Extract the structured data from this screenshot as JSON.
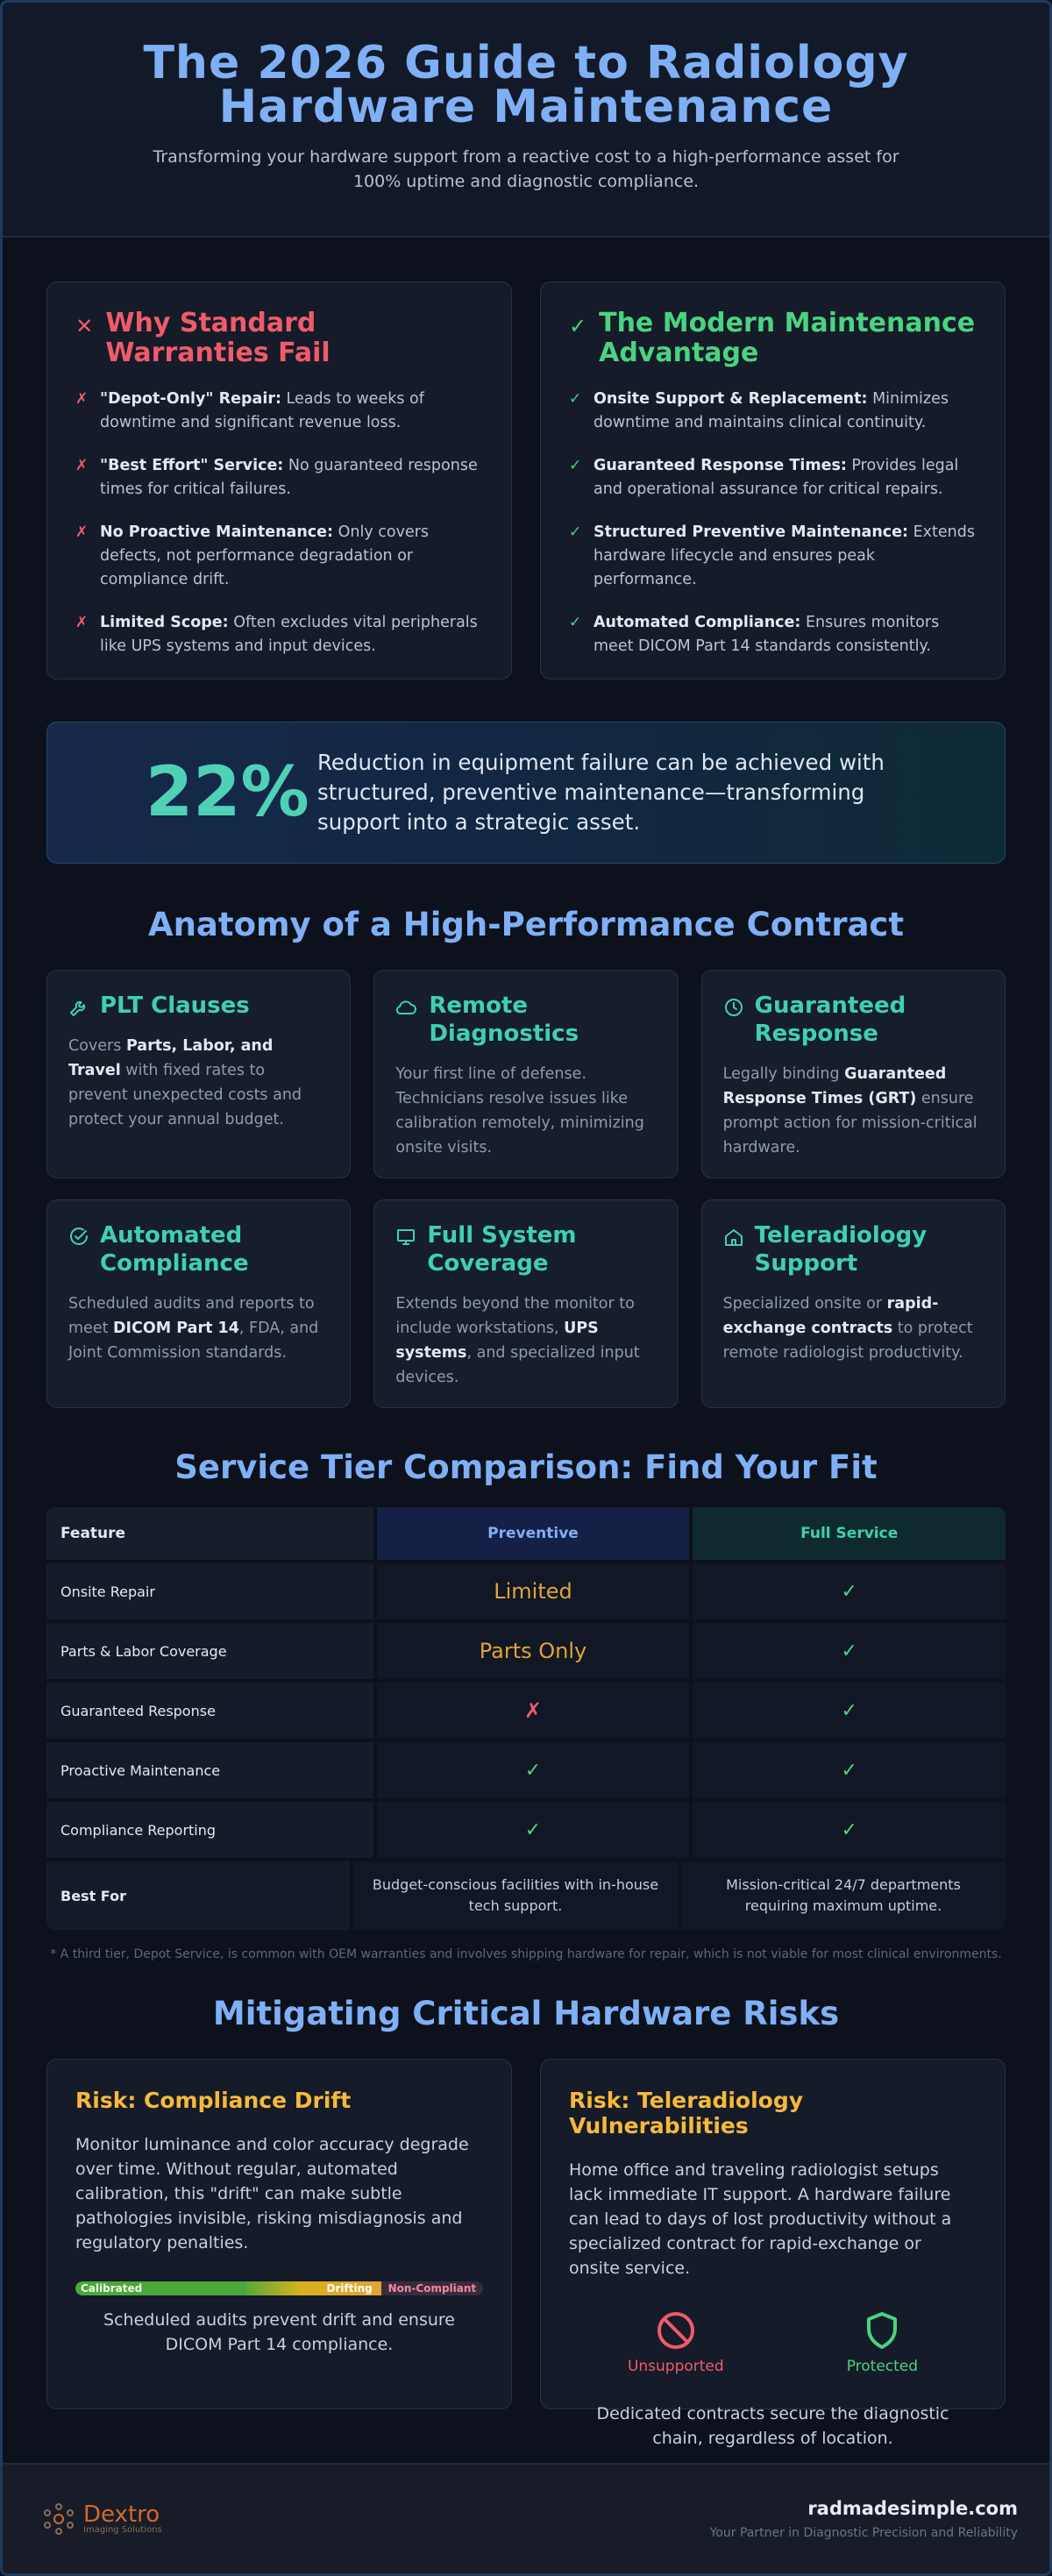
{
  "header": {
    "title": "The 2026 Guide to Radiology Hardware Maintenance",
    "subtitle": "Transforming your hardware support from a reactive cost to a high-performance asset for 100% uptime and diagnostic compliance."
  },
  "compare": {
    "bad": {
      "title": "Why Standard Warranties Fail",
      "icon": "x-icon",
      "items": [
        {
          "bold": "\"Depot-Only\" Repair:",
          "text": " Leads to weeks of downtime and significant revenue loss."
        },
        {
          "bold": "\"Best Effort\" Service:",
          "text": " No guaranteed response times for critical failures."
        },
        {
          "bold": "No Proactive Maintenance:",
          "text": " Only covers defects, not performance degradation or compliance drift."
        },
        {
          "bold": "Limited Scope:",
          "text": " Often excludes vital peripherals like UPS systems and input devices."
        }
      ]
    },
    "good": {
      "title": "The Modern Maintenance Advantage",
      "icon": "check-icon",
      "items": [
        {
          "bold": "Onsite Support & Replacement:",
          "text": " Minimizes downtime and maintains clinical continuity."
        },
        {
          "bold": "Guaranteed Response Times:",
          "text": " Provides legal and operational assurance for critical repairs."
        },
        {
          "bold": "Structured Preventive Maintenance:",
          "text": " Extends hardware lifecycle and ensures peak performance."
        },
        {
          "bold": "Automated Compliance:",
          "text": " Ensures monitors meet DICOM Part 14 standards consistently."
        }
      ]
    }
  },
  "stat": {
    "value": "22%",
    "text": "Reduction in equipment failure can be achieved with structured, preventive maintenance—transforming support into a strategic asset."
  },
  "anatomy": {
    "title": "Anatomy of a High-Performance Contract",
    "cards": [
      {
        "title": "PLT Clauses",
        "icon": "wrench-icon",
        "parts": [
          "Covers ",
          "Parts, Labor, and Travel",
          " with fixed rates to prevent unexpected costs and protect your annual budget."
        ]
      },
      {
        "title": "Remote Diagnostics",
        "icon": "cloud-icon",
        "parts": [
          "Your first line of defense. Technicians resolve issues like calibration remotely, minimizing onsite visits.",
          "",
          ""
        ]
      },
      {
        "title": "Guaranteed Response",
        "icon": "clock-icon",
        "parts": [
          "Legally binding ",
          "Guaranteed Response Times (GRT)",
          " ensure prompt action for mission-critical hardware."
        ]
      },
      {
        "title": "Automated Compliance",
        "icon": "check-circle-icon",
        "parts": [
          "Scheduled audits and reports to meet ",
          "DICOM Part 14",
          ", FDA, and Joint Commission standards."
        ]
      },
      {
        "title": "Full System Coverage",
        "icon": "monitor-icon",
        "parts": [
          "Extends beyond the monitor to include workstations, ",
          "UPS systems",
          ", and specialized input devices."
        ]
      },
      {
        "title": "Teleradiology Support",
        "icon": "home-icon",
        "parts": [
          "Specialized onsite or ",
          "rapid-exchange contracts",
          " to protect remote radiologist productivity."
        ]
      }
    ]
  },
  "tiers": {
    "title": "Service Tier Comparison: Find Your Fit",
    "headers": [
      "Feature",
      "Preventive",
      "Full Service"
    ],
    "rows": [
      {
        "feature": "Onsite Repair",
        "preventive": "Limited",
        "full": "✓"
      },
      {
        "feature": "Parts & Labor Coverage",
        "preventive": "Parts Only",
        "full": "✓"
      },
      {
        "feature": "Guaranteed Response",
        "preventive": "✗",
        "full": "✓"
      },
      {
        "feature": "Proactive Maintenance",
        "preventive": "✓",
        "full": "✓"
      },
      {
        "feature": "Compliance Reporting",
        "preventive": "✓",
        "full": "✓"
      }
    ],
    "best_for": {
      "label": "Best For",
      "preventive": "Budget-conscious facilities with in-house tech support.",
      "full": "Mission-critical 24/7 departments requiring maximum uptime."
    },
    "footnote": "* A third tier, Depot Service, is common with OEM warranties and involves shipping hardware for repair, which is not viable for most clinical environments."
  },
  "risks": {
    "title": "Mitigating Critical Hardware Risks",
    "drift": {
      "title": "Risk: Compliance Drift",
      "text": "Monitor luminance and color accuracy degrade over time. Without regular, automated calibration, this \"drift\" can make subtle pathologies invisible, risking misdiagnosis and regulatory penalties.",
      "bar_labels": [
        "Calibrated",
        "Drifting",
        "Non-Compliant"
      ],
      "caption": "Scheduled audits prevent drift and ensure DICOM Part 14 compliance."
    },
    "tele": {
      "title": "Risk: Teleradiology Vulnerabilities",
      "text": "Home office and traveling radiologist setups lack immediate IT support. A hardware failure can lead to days of lost productivity without a specialized contract for rapid-exchange or onsite service.",
      "unsupported": "Unsupported",
      "protected": "Protected",
      "caption": "Dedicated contracts secure the diagnostic chain, regardless of location."
    }
  },
  "footer": {
    "logo_name": "Dextro",
    "logo_sub": "Imaging Solutions",
    "site": "radmadesimple.com",
    "tagline": "Your Partner in Diagnostic Precision and Reliability"
  },
  "colors": {
    "title_blue": "#7fb0f5",
    "teal": "#3fd0b1",
    "red": "#ef5b6b",
    "green": "#4ad381",
    "amber": "#f6b93b"
  }
}
